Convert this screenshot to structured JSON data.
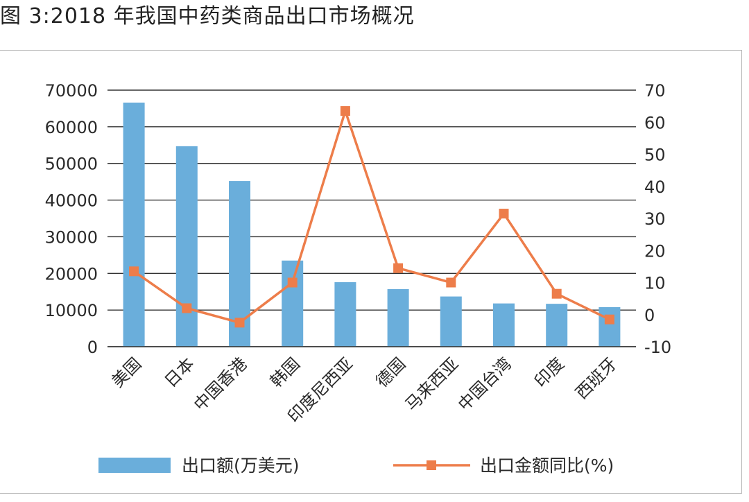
{
  "figure": {
    "title": "图 3:2018 年我国中药类商品出口市场概况"
  },
  "chart_data": {
    "type": "bar",
    "categories": [
      "美国",
      "日本",
      "中国香港",
      "韩国",
      "印度尼西亚",
      "德国",
      "马来西亚",
      "中国台湾",
      "印度",
      "西班牙"
    ],
    "series": [
      {
        "name": "出口额(万美元)",
        "type": "bar",
        "axis": "left",
        "color": "#6aaedb",
        "values": [
          66600,
          54700,
          45200,
          23500,
          17600,
          15700,
          13700,
          11800,
          11700,
          10800
        ]
      },
      {
        "name": "出口金额同比(%)",
        "type": "line",
        "axis": "right",
        "color": "#ed7d4a",
        "marker": "square",
        "values": [
          13.5,
          2,
          -2.5,
          10,
          63.5,
          14.5,
          10,
          31.5,
          6.5,
          -1.5
        ]
      }
    ],
    "y_left": {
      "lim": [
        0,
        70000
      ],
      "ticks": [
        "0",
        "10000",
        "20000",
        "30000",
        "40000",
        "50000",
        "60000",
        "70000"
      ]
    },
    "y_right": {
      "lim": [
        -10,
        70
      ],
      "ticks": [
        "-10",
        "0",
        "10",
        "20",
        "30",
        "40",
        "50",
        "60",
        "70"
      ]
    },
    "grid": true,
    "legend_position": "bottom"
  }
}
